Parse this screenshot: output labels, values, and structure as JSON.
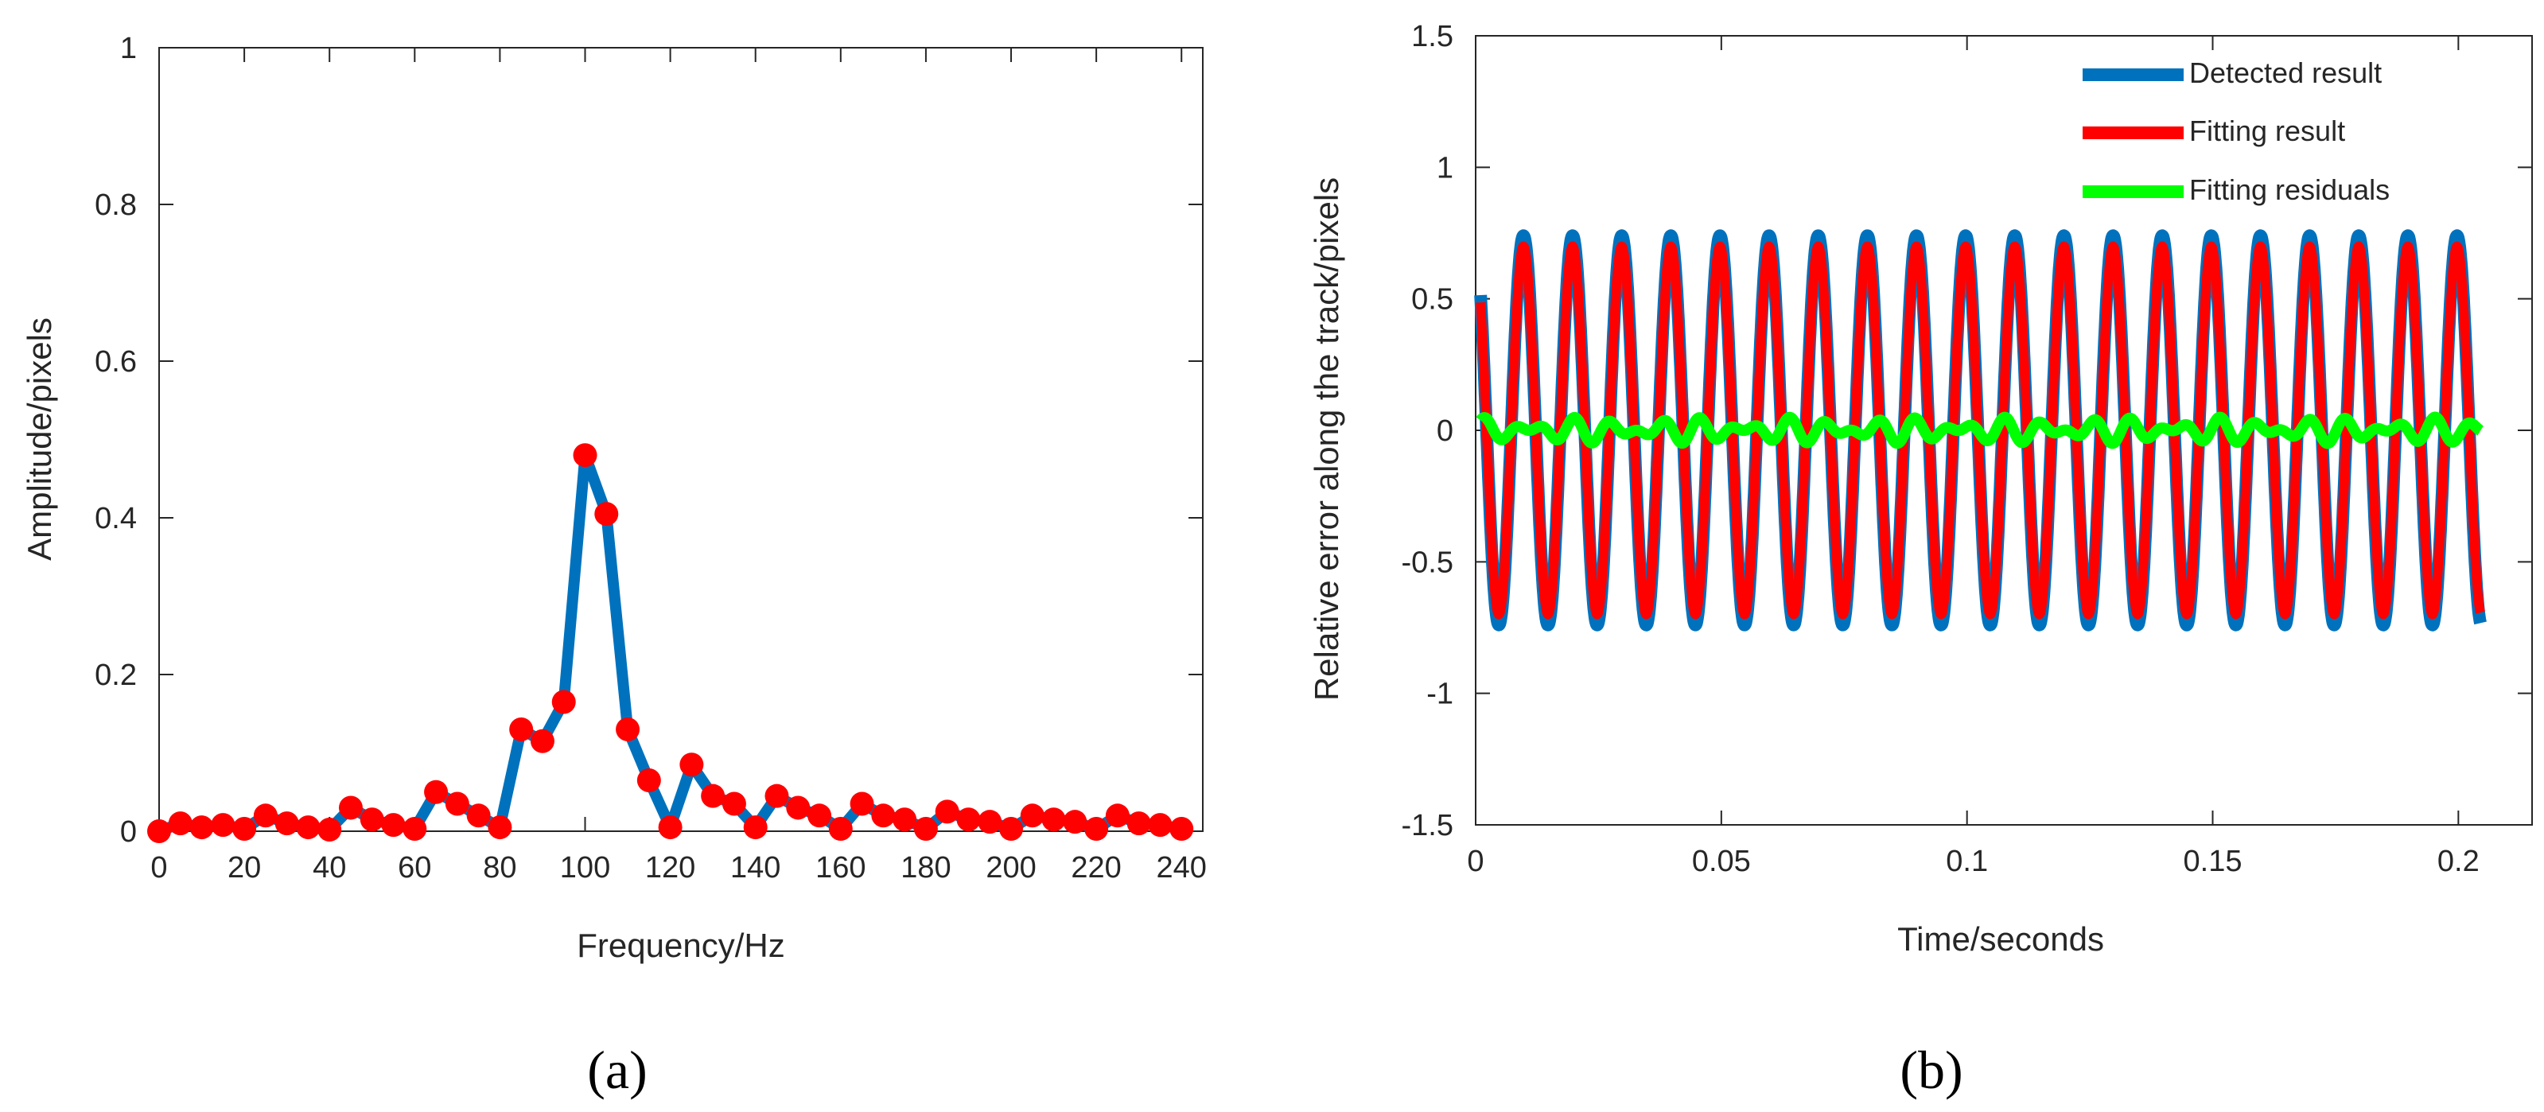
{
  "chart_data": [
    {
      "type": "line",
      "panel_label": "(a)",
      "xlabel": "Frequency/Hz",
      "ylabel": "Amplitude/pixels",
      "xlim": [
        0,
        245
      ],
      "ylim": [
        0,
        1
      ],
      "xticks": [
        0,
        20,
        40,
        60,
        80,
        100,
        120,
        140,
        160,
        180,
        200,
        220,
        240
      ],
      "xtick_labels": [
        "0",
        "20",
        "40",
        "60",
        "80",
        "100",
        "120",
        "140",
        "160",
        "180",
        "200",
        "220",
        "240"
      ],
      "yticks": [
        0,
        0.2,
        0.4,
        0.6,
        0.8,
        1
      ],
      "ytick_labels": [
        "0",
        "0.2",
        "0.4",
        "0.6",
        "0.8",
        "1"
      ],
      "grid": false,
      "series": [
        {
          "line_color": "#0072BD",
          "marker_color": "#FF0000",
          "x": [
            0,
            5,
            10,
            15,
            20,
            25,
            30,
            35,
            40,
            45,
            50,
            55,
            60,
            65,
            70,
            75,
            80,
            85,
            90,
            95,
            100,
            105,
            110,
            115,
            120,
            125,
            130,
            135,
            140,
            145,
            150,
            155,
            160,
            165,
            170,
            175,
            180,
            185,
            190,
            195,
            200,
            205,
            210,
            215,
            220,
            225,
            230,
            235,
            240
          ],
          "y": [
            0,
            0.01,
            0.005,
            0.008,
            0.003,
            0.02,
            0.01,
            0.005,
            0.002,
            0.03,
            0.015,
            0.008,
            0.003,
            0.05,
            0.035,
            0.02,
            0.005,
            0.13,
            0.115,
            0.165,
            0.48,
            0.405,
            0.13,
            0.065,
            0.005,
            0.085,
            0.045,
            0.035,
            0.005,
            0.045,
            0.03,
            0.02,
            0.003,
            0.035,
            0.02,
            0.015,
            0.003,
            0.025,
            0.015,
            0.012,
            0.003,
            0.02,
            0.015,
            0.012,
            0.003,
            0.02,
            0.01,
            0.008,
            0.003
          ]
        }
      ]
    },
    {
      "type": "line",
      "panel_label": "(b)",
      "xlabel": "Time/seconds",
      "ylabel": "Relative error along the track/pixels",
      "xlim": [
        0,
        0.215
      ],
      "ylim": [
        -1.5,
        1.5
      ],
      "xticks": [
        0,
        0.05,
        0.1,
        0.15,
        0.2
      ],
      "xtick_labels": [
        "0",
        "0.05",
        "0.1",
        "0.15",
        "0.2"
      ],
      "yticks": [
        -1.5,
        -1,
        -0.5,
        0,
        0.5,
        1,
        1.5
      ],
      "ytick_labels": [
        "-1.5",
        "-1",
        "-0.5",
        "0",
        "0.5",
        "1",
        "1.5"
      ],
      "grid": false,
      "legend": "top-right",
      "signal": {
        "frequency_hz": 100,
        "t_start": 0.001,
        "t_end": 0.2045
      },
      "series": [
        {
          "name": "Detected result",
          "color": "#0072BD",
          "amplitude": 0.74,
          "phase_deg": 100
        },
        {
          "name": "Fitting result",
          "color": "#FF0000",
          "amplitude": 0.7,
          "phase_deg": 100
        },
        {
          "name": "Fitting residuals",
          "color": "#00FF00",
          "amplitude": 0.05,
          "residual_mean": 0.0
        }
      ]
    }
  ]
}
